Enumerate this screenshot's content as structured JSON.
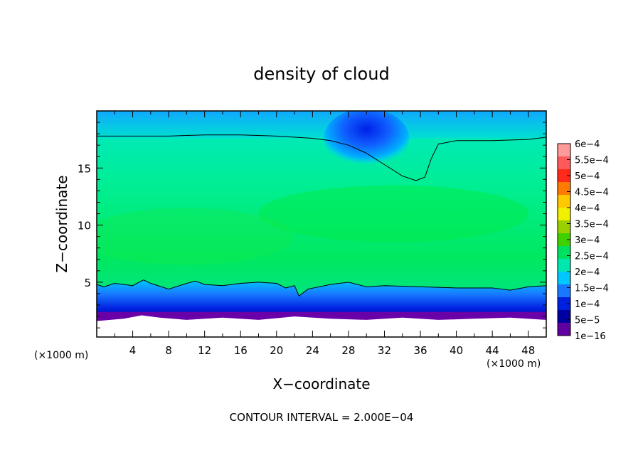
{
  "chart_data": {
    "type": "heatmap",
    "title": "density of cloud",
    "xlabel": "X−coordinate",
    "ylabel": "Z−coordinate",
    "x_unit_left": "(×1000 m)",
    "x_unit_right": "(×1000 m)",
    "footer": "CONTOUR INTERVAL = 2.000E−04",
    "xlim": [
      0,
      50
    ],
    "ylim": [
      0.2,
      20
    ],
    "x_ticks": [
      4,
      8,
      12,
      16,
      20,
      24,
      28,
      32,
      36,
      40,
      44,
      48
    ],
    "x_tick_labels": [
      "4",
      "8",
      "12",
      "16",
      "20",
      "24",
      "28",
      "32",
      "36",
      "40",
      "44",
      "48"
    ],
    "y_ticks": [
      5,
      10,
      15
    ],
    "y_tick_labels": [
      "5",
      "10",
      "15"
    ],
    "grid": false,
    "colorbar": {
      "placement": "right",
      "labels": [
        "6e−4",
        "5.5e−4",
        "5e−4",
        "4.5e−4",
        "4e−4",
        "3.5e−4",
        "3e−4",
        "2.5e−4",
        "2e−4",
        "1.5e−4",
        "1e−4",
        "5e−5",
        "1e−16"
      ],
      "colors": [
        "#ff9a9a",
        "#ff5a5a",
        "#ff2a1a",
        "#ff7a00",
        "#ffc800",
        "#f0f000",
        "#9ad000",
        "#40d000",
        "#00e060",
        "#00e8b0",
        "#00c8ff",
        "#1878ff",
        "#0020e0",
        "#0000a0",
        "#6000a0"
      ]
    },
    "contour_lines": [
      {
        "level": "2.000E−04",
        "x": [
          0,
          4,
          8,
          12,
          16,
          20,
          24,
          26,
          28,
          30,
          32,
          34,
          35.5,
          36.5,
          37.2,
          38,
          40,
          44,
          48,
          50
        ],
        "z": [
          17.8,
          17.8,
          17.8,
          17.9,
          17.9,
          17.8,
          17.6,
          17.4,
          17.0,
          16.3,
          15.3,
          14.3,
          13.9,
          14.2,
          15.8,
          17.1,
          17.4,
          17.4,
          17.5,
          17.7
        ]
      },
      {
        "level": "2.000E−04",
        "x": [
          0,
          0.8,
          2,
          4,
          5.2,
          6,
          8,
          10,
          11,
          12,
          14,
          16,
          18,
          20,
          21,
          22,
          22.5,
          23.5,
          26,
          28,
          30,
          32,
          36,
          40,
          44,
          46,
          48,
          50
        ],
        "z": [
          4.8,
          4.6,
          4.9,
          4.7,
          5.2,
          4.9,
          4.4,
          4.9,
          5.1,
          4.8,
          4.7,
          4.9,
          5.0,
          4.9,
          4.5,
          4.7,
          3.8,
          4.4,
          4.8,
          5.0,
          4.6,
          4.7,
          4.6,
          4.5,
          4.5,
          4.3,
          4.6,
          4.7
        ]
      }
    ]
  }
}
